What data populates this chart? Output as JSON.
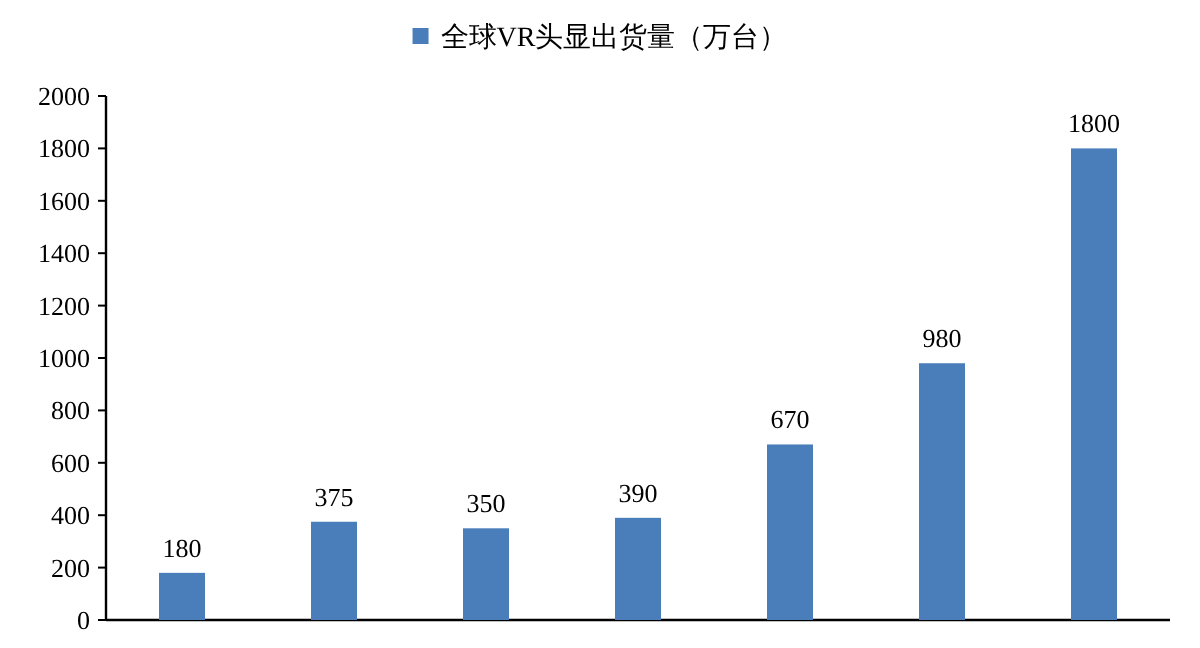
{
  "chart_data": {
    "type": "bar",
    "categories": [
      null,
      null,
      null,
      null,
      null,
      null,
      null
    ],
    "series": [
      {
        "name": "全球VR头显出货量（万台）",
        "color": "#4a7ebb",
        "values": [
          180,
          375,
          350,
          390,
          670,
          980,
          1800
        ]
      }
    ],
    "ylim": [
      0,
      2000
    ],
    "yticks": [
      0,
      200,
      400,
      600,
      800,
      1000,
      1200,
      1400,
      1600,
      1800,
      2000
    ],
    "data_labels": true,
    "legend": "top"
  }
}
